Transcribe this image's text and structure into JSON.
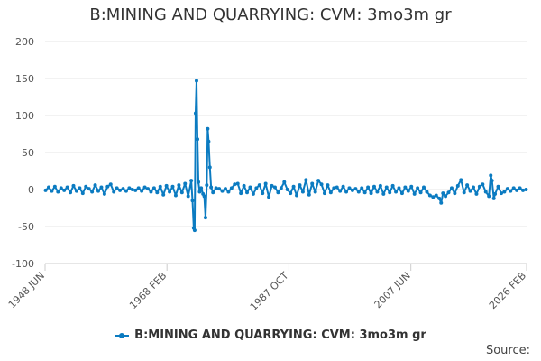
{
  "chart_data": {
    "type": "line",
    "title": "B:MINING AND QUARRYING: CVM: 3mo3m gr",
    "xlabel": "",
    "ylabel": "",
    "x_tick_labels": [
      "1948 JUN",
      "1968 FEB",
      "1987 OCT",
      "2007 JUN",
      "2026 FEB"
    ],
    "x_ticks_years": [
      1948.42,
      1968.08,
      1987.75,
      2007.42,
      2026.08
    ],
    "xlim": [
      1948.42,
      2026.08
    ],
    "ylim": [
      -100,
      200
    ],
    "y_ticks": [
      -100,
      -50,
      0,
      50,
      100,
      150,
      200
    ],
    "grid": true,
    "legend_position": "bottom",
    "series": [
      {
        "name": "B:MINING AND QUARRYING: CVM: 3mo3m gr",
        "color": "#0b7bc1",
        "points": [
          [
            1948.5,
            -1
          ],
          [
            1949.0,
            3
          ],
          [
            1949.5,
            -2
          ],
          [
            1950.0,
            4
          ],
          [
            1950.5,
            -3
          ],
          [
            1951.0,
            2
          ],
          [
            1951.5,
            -1
          ],
          [
            1952.0,
            3
          ],
          [
            1952.5,
            -4
          ],
          [
            1953.0,
            5
          ],
          [
            1953.5,
            -2
          ],
          [
            1954.0,
            2
          ],
          [
            1954.5,
            -5
          ],
          [
            1955.0,
            4
          ],
          [
            1955.5,
            1
          ],
          [
            1956.0,
            -3
          ],
          [
            1956.5,
            6
          ],
          [
            1957.0,
            -2
          ],
          [
            1957.5,
            3
          ],
          [
            1958.0,
            -6
          ],
          [
            1958.5,
            4
          ],
          [
            1959.0,
            7
          ],
          [
            1959.5,
            -3
          ],
          [
            1960.0,
            2
          ],
          [
            1960.5,
            -1
          ],
          [
            1961.0,
            1
          ],
          [
            1961.5,
            -2
          ],
          [
            1962.0,
            2
          ],
          [
            1962.5,
            0
          ],
          [
            1963.0,
            -1
          ],
          [
            1963.5,
            2
          ],
          [
            1964.0,
            -2
          ],
          [
            1964.5,
            3
          ],
          [
            1965.0,
            1
          ],
          [
            1965.5,
            -3
          ],
          [
            1966.0,
            2
          ],
          [
            1966.5,
            -4
          ],
          [
            1967.0,
            4
          ],
          [
            1967.5,
            -7
          ],
          [
            1968.0,
            5
          ],
          [
            1968.5,
            -3
          ],
          [
            1969.0,
            4
          ],
          [
            1969.5,
            -8
          ],
          [
            1970.0,
            6
          ],
          [
            1970.5,
            -4
          ],
          [
            1971.0,
            8
          ],
          [
            1971.5,
            -9
          ],
          [
            1972.0,
            12
          ],
          [
            1972.2,
            -15
          ],
          [
            1972.4,
            -52
          ],
          [
            1972.55,
            -55
          ],
          [
            1972.7,
            103
          ],
          [
            1972.85,
            147
          ],
          [
            1973.0,
            68
          ],
          [
            1973.15,
            10
          ],
          [
            1973.35,
            -3
          ],
          [
            1973.6,
            2
          ],
          [
            1973.9,
            -6
          ],
          [
            1974.1,
            -9
          ],
          [
            1974.3,
            -38
          ],
          [
            1974.5,
            6
          ],
          [
            1974.65,
            82
          ],
          [
            1974.8,
            65
          ],
          [
            1975.0,
            30
          ],
          [
            1975.2,
            3
          ],
          [
            1975.5,
            -4
          ],
          [
            1976.0,
            2
          ],
          [
            1976.5,
            1
          ],
          [
            1977.0,
            -2
          ],
          [
            1977.5,
            1
          ],
          [
            1978.0,
            -3
          ],
          [
            1978.5,
            2
          ],
          [
            1979.0,
            7
          ],
          [
            1979.5,
            8
          ],
          [
            1980.0,
            -5
          ],
          [
            1980.5,
            5
          ],
          [
            1981.0,
            -4
          ],
          [
            1981.5,
            3
          ],
          [
            1982.0,
            -6
          ],
          [
            1982.5,
            2
          ],
          [
            1983.0,
            6
          ],
          [
            1983.5,
            -5
          ],
          [
            1984.0,
            8
          ],
          [
            1984.5,
            -10
          ],
          [
            1985.0,
            5
          ],
          [
            1985.5,
            3
          ],
          [
            1986.0,
            -4
          ],
          [
            1986.5,
            2
          ],
          [
            1987.0,
            10
          ],
          [
            1987.5,
            0
          ],
          [
            1988.0,
            -5
          ],
          [
            1988.5,
            4
          ],
          [
            1989.0,
            -8
          ],
          [
            1989.5,
            6
          ],
          [
            1990.0,
            -3
          ],
          [
            1990.5,
            13
          ],
          [
            1991.0,
            -7
          ],
          [
            1991.5,
            8
          ],
          [
            1992.0,
            -3
          ],
          [
            1992.5,
            12
          ],
          [
            1993.0,
            7
          ],
          [
            1993.5,
            -5
          ],
          [
            1994.0,
            6
          ],
          [
            1994.5,
            -4
          ],
          [
            1995.0,
            2
          ],
          [
            1995.5,
            3
          ],
          [
            1996.0,
            -2
          ],
          [
            1996.5,
            4
          ],
          [
            1997.0,
            -3
          ],
          [
            1997.5,
            2
          ],
          [
            1998.0,
            -1
          ],
          [
            1998.5,
            1
          ],
          [
            1999.0,
            -3
          ],
          [
            1999.5,
            2
          ],
          [
            2000.0,
            -4
          ],
          [
            2000.5,
            3
          ],
          [
            2001.0,
            -5
          ],
          [
            2001.5,
            4
          ],
          [
            2002.0,
            -3
          ],
          [
            2002.5,
            5
          ],
          [
            2003.0,
            -6
          ],
          [
            2003.5,
            3
          ],
          [
            2004.0,
            -4
          ],
          [
            2004.5,
            5
          ],
          [
            2005.0,
            -3
          ],
          [
            2005.5,
            2
          ],
          [
            2006.0,
            -5
          ],
          [
            2006.5,
            3
          ],
          [
            2007.0,
            -2
          ],
          [
            2007.5,
            4
          ],
          [
            2008.0,
            -6
          ],
          [
            2008.5,
            2
          ],
          [
            2009.0,
            -4
          ],
          [
            2009.5,
            3
          ],
          [
            2010.0,
            -3
          ],
          [
            2010.5,
            -8
          ],
          [
            2011.0,
            -10
          ],
          [
            2011.5,
            -8
          ],
          [
            2012.0,
            -12
          ],
          [
            2012.3,
            -18
          ],
          [
            2012.6,
            -5
          ],
          [
            2013.0,
            -9
          ],
          [
            2013.5,
            -4
          ],
          [
            2014.0,
            2
          ],
          [
            2014.5,
            -5
          ],
          [
            2015.0,
            5
          ],
          [
            2015.5,
            13
          ],
          [
            2016.0,
            -4
          ],
          [
            2016.5,
            6
          ],
          [
            2017.0,
            -2
          ],
          [
            2017.5,
            3
          ],
          [
            2018.0,
            -6
          ],
          [
            2018.5,
            4
          ],
          [
            2019.0,
            7
          ],
          [
            2019.5,
            -3
          ],
          [
            2020.0,
            -9
          ],
          [
            2020.3,
            19
          ],
          [
            2020.5,
            12
          ],
          [
            2020.8,
            -12
          ],
          [
            2021.0,
            -6
          ],
          [
            2021.5,
            4
          ],
          [
            2022.0,
            -5
          ],
          [
            2022.5,
            -3
          ],
          [
            2023.0,
            1
          ],
          [
            2023.5,
            -2
          ],
          [
            2024.0,
            2
          ],
          [
            2024.5,
            -1
          ],
          [
            2025.0,
            2
          ],
          [
            2025.5,
            -1
          ],
          [
            2026.0,
            0
          ]
        ]
      }
    ]
  },
  "footer": {
    "source_label": "Source:"
  }
}
